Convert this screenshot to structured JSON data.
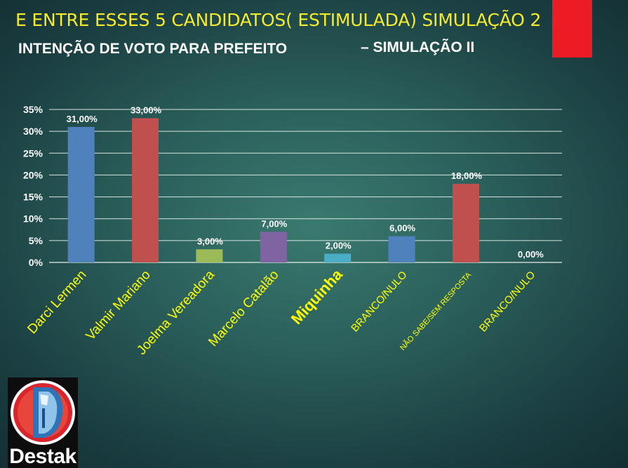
{
  "header": {
    "title": "E ENTRE ESSES 5 CANDIDATOS( ESTIMULADA) SIMULAÇÃO 2",
    "subtitle": "INTENÇÃO DE VOTO PARA PREFEITO",
    "subtitle_suffix": "– SIMULAÇÃO II",
    "accent_color": "#ec1c24"
  },
  "chart_data": {
    "type": "bar",
    "categories": [
      "Darci Lermen",
      "Valmir Mariano",
      "Joelma Vereadora",
      "Marcelo Catalão",
      "Miquinha",
      "BRANCO/NULO",
      "NÃO SABE/SEM RESPOSTA",
      "BRANCO/NULO"
    ],
    "values": [
      31,
      33,
      3,
      7,
      2,
      6,
      18,
      0
    ],
    "data_labels": [
      "31,00%",
      "33,00%",
      "3,00%",
      "7,00%",
      "2,00%",
      "6,00%",
      "18,00%",
      "0,00%"
    ],
    "bar_colors": [
      "#4f81bd",
      "#c0504d",
      "#9bbb59",
      "#8064a2",
      "#4bacc6",
      "#4f81bd",
      "#c0504d",
      "#9bbb59"
    ],
    "y_ticks": [
      "0%",
      "5%",
      "10%",
      "15%",
      "20%",
      "25%",
      "30%",
      "35%"
    ],
    "ylim": [
      0,
      35
    ],
    "grid": true,
    "tick_label_color": "#ffff00",
    "title": "",
    "xlabel": "",
    "ylabel": ""
  },
  "logo": {
    "text": "Destak"
  }
}
